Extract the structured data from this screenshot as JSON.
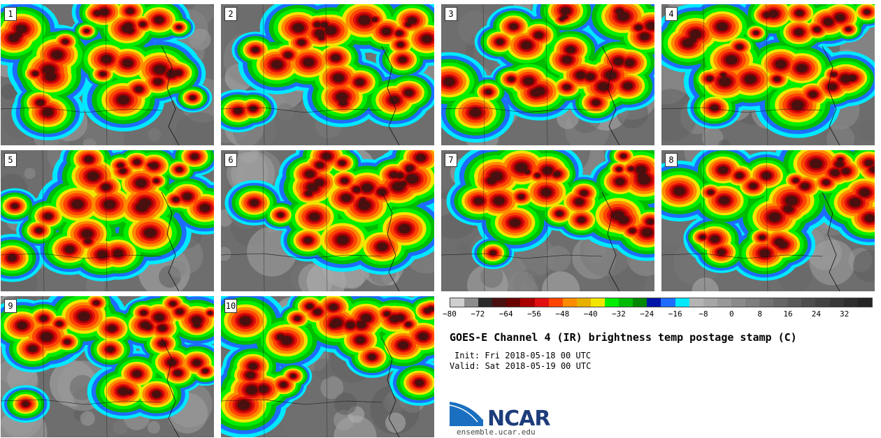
{
  "panels": [
    {
      "label": "1"
    },
    {
      "label": "2"
    },
    {
      "label": "3"
    },
    {
      "label": "4"
    },
    {
      "label": "5"
    },
    {
      "label": "6"
    },
    {
      "label": "7"
    },
    {
      "label": "8"
    },
    {
      "label": "9"
    },
    {
      "label": "10"
    }
  ],
  "colorbar": {
    "colors": [
      "#cfcfcf",
      "#8c8c8c",
      "#2a2a2a",
      "#4a1010",
      "#6b0000",
      "#a80000",
      "#e01010",
      "#ff4500",
      "#ff8c00",
      "#e6b000",
      "#f2e600",
      "#00ee00",
      "#00bb00",
      "#008800",
      "#0015a8",
      "#1e6cff",
      "#00e8ff",
      "#b4b4b4",
      "#a6a6a6",
      "#989898",
      "#8a8a8a",
      "#7e7e7e",
      "#727272",
      "#666666",
      "#5a5a5a",
      "#4e4e4e",
      "#434343",
      "#383838",
      "#2e2e2e",
      "#252525"
    ],
    "ticks": [
      "−80",
      "−72",
      "−64",
      "−56",
      "−48",
      "−40",
      "−32",
      "−24",
      "−16",
      "−8",
      "0",
      "8",
      "16",
      "24",
      "32"
    ]
  },
  "title": "GOES-E Channel 4 (IR) brightness temp postage stamp (C)",
  "init": "Init: Fri 2018-05-18 00 UTC",
  "valid": "Valid: Sat 2018-05-19 00 UTC",
  "logo_text": "NCAR",
  "url": "ensemble.ucar.edu"
}
